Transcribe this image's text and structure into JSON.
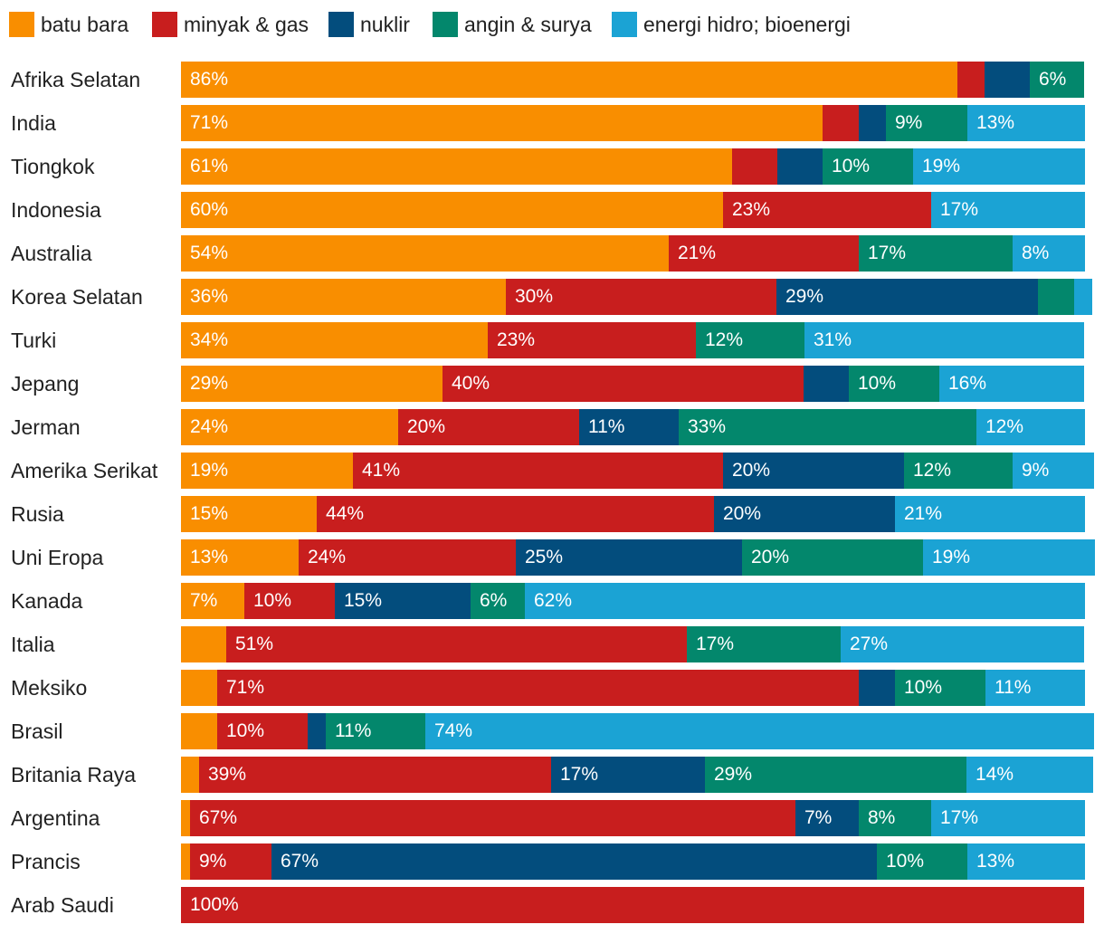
{
  "chart_data": {
    "type": "bar",
    "orientation": "horizontal",
    "stacked": true,
    "legend_position": "top-left",
    "xlim": [
      0,
      100
    ],
    "series": [
      {
        "name": "batu bara",
        "color": "#F98E00"
      },
      {
        "name": "minyak & gas",
        "color": "#C81E1E"
      },
      {
        "name": "nuklir",
        "color": "#034D7D"
      },
      {
        "name": "angin & surya",
        "color": "#03876C"
      },
      {
        "name": "energi hidro; bioenergi",
        "color": "#1BA3D4"
      }
    ],
    "categories": [
      "Afrika Selatan",
      "India",
      "Tiongkok",
      "Indonesia",
      "Australia",
      "Korea Selatan",
      "Turki",
      "Jepang",
      "Jerman",
      "Amerika Serikat",
      "Rusia",
      "Uni Eropa",
      "Kanada",
      "Italia",
      "Meksiko",
      "Brasil",
      "Britania Raya",
      "Argentina",
      "Prancis",
      "Arab Saudi"
    ],
    "values": [
      [
        86,
        3,
        5,
        6,
        0
      ],
      [
        71,
        4,
        3,
        9,
        13
      ],
      [
        61,
        5,
        5,
        10,
        19
      ],
      [
        60,
        23,
        0,
        0,
        17
      ],
      [
        54,
        21,
        0,
        17,
        8
      ],
      [
        36,
        30,
        29,
        4,
        2
      ],
      [
        34,
        23,
        0,
        12,
        31
      ],
      [
        29,
        40,
        5,
        10,
        16
      ],
      [
        24,
        20,
        11,
        33,
        12
      ],
      [
        19,
        41,
        20,
        12,
        9
      ],
      [
        15,
        44,
        20,
        0,
        21
      ],
      [
        13,
        24,
        25,
        20,
        19
      ],
      [
        7,
        10,
        15,
        6,
        62
      ],
      [
        5,
        51,
        0,
        17,
        27
      ],
      [
        4,
        71,
        4,
        10,
        11
      ],
      [
        4,
        10,
        2,
        11,
        74
      ],
      [
        2,
        39,
        17,
        29,
        14
      ],
      [
        1,
        67,
        7,
        8,
        17
      ],
      [
        1,
        9,
        67,
        10,
        13
      ],
      [
        0,
        100,
        0,
        0,
        0
      ]
    ],
    "value_labels": [
      [
        "86%",
        "",
        "",
        "6%",
        ""
      ],
      [
        "71%",
        "",
        "",
        "9%",
        "13%"
      ],
      [
        "61%",
        "",
        "",
        "10%",
        "19%"
      ],
      [
        "60%",
        "23%",
        "",
        "",
        "17%"
      ],
      [
        "54%",
        "21%",
        "",
        "17%",
        "8%"
      ],
      [
        "36%",
        "30%",
        "29%",
        "",
        ""
      ],
      [
        "34%",
        "23%",
        "",
        "12%",
        "31%"
      ],
      [
        "29%",
        "40%",
        "",
        "10%",
        "16%"
      ],
      [
        "24%",
        "20%",
        "11%",
        "33%",
        "12%"
      ],
      [
        "19%",
        "41%",
        "20%",
        "12%",
        "9%"
      ],
      [
        "15%",
        "44%",
        "20%",
        "",
        "21%"
      ],
      [
        "13%",
        "24%",
        "25%",
        "20%",
        "19%"
      ],
      [
        "7%",
        "10%",
        "15%",
        "6%",
        "62%"
      ],
      [
        "",
        "51%",
        "",
        "17%",
        "27%"
      ],
      [
        "",
        "71%",
        "",
        "10%",
        "11%"
      ],
      [
        "",
        "10%",
        "",
        "11%",
        "74%"
      ],
      [
        "",
        "39%",
        "17%",
        "29%",
        "14%"
      ],
      [
        "",
        "67%",
        "7%",
        "8%",
        "17%"
      ],
      [
        "",
        "9%",
        "67%",
        "10%",
        "13%"
      ],
      [
        "",
        "100%",
        "",
        "",
        ""
      ]
    ]
  }
}
